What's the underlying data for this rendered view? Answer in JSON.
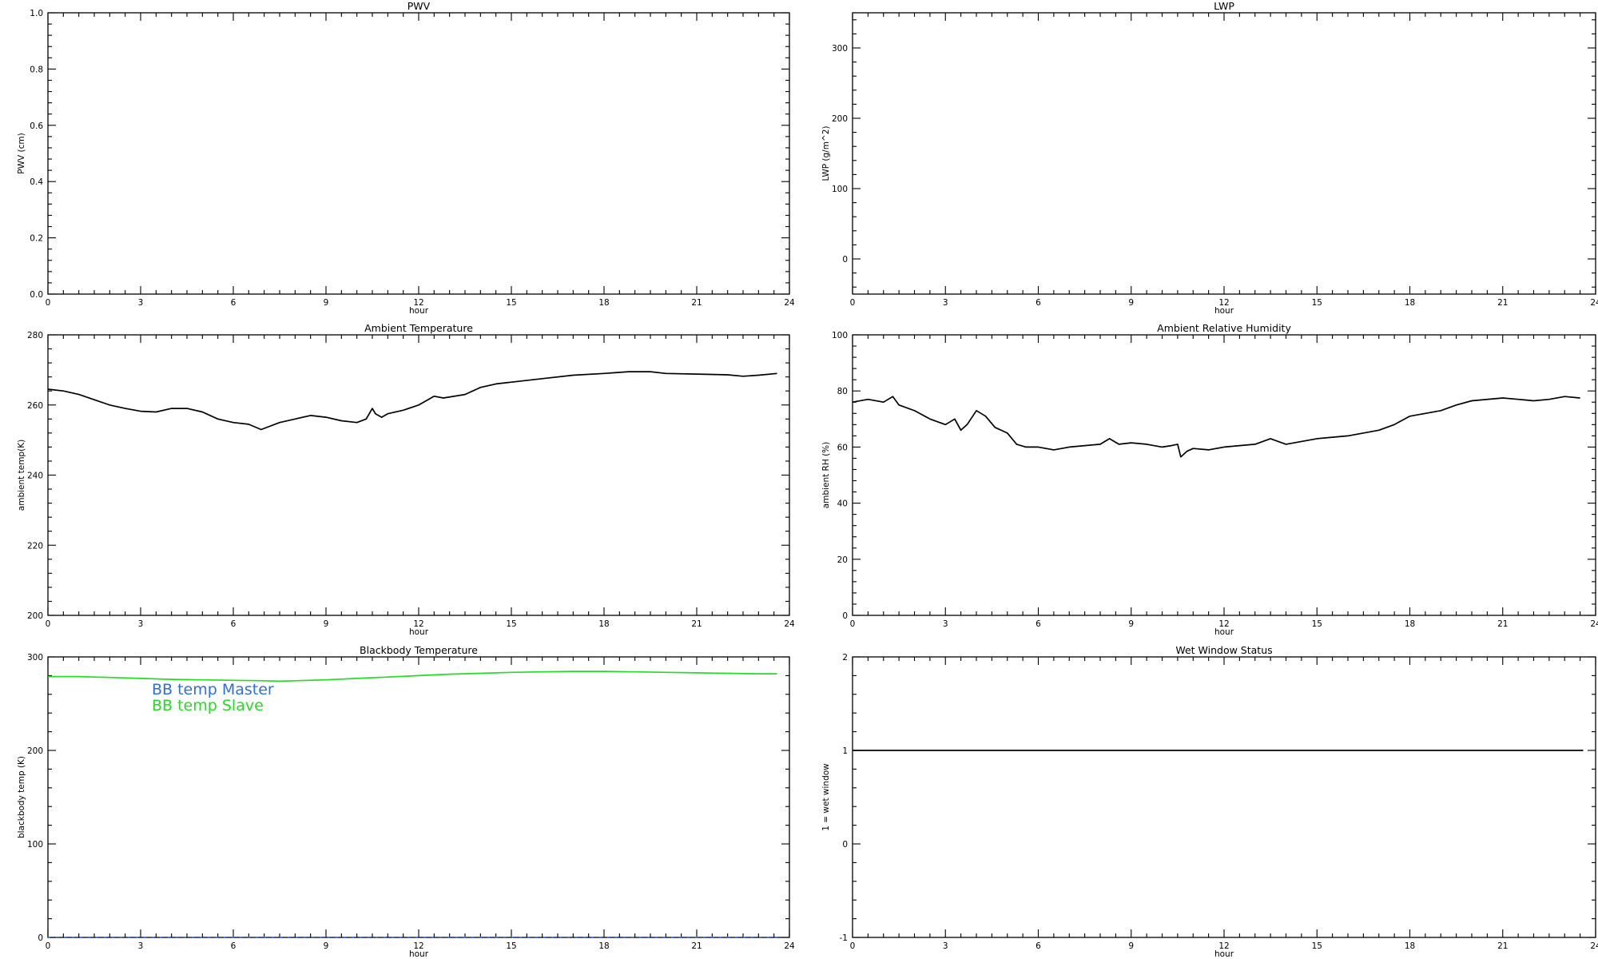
{
  "chart_data": [
    {
      "id": "pwv",
      "type": "line",
      "title": "PWV",
      "xlabel": "hour",
      "ylabel": "PWV (cm)",
      "xlim": [
        0,
        24
      ],
      "ylim": [
        0,
        1
      ],
      "xticks": [
        0,
        3,
        6,
        9,
        12,
        15,
        18,
        21,
        24
      ],
      "xtick_labels": [
        "0",
        "3",
        "6",
        "9",
        "12",
        "15",
        "18",
        "21",
        "24"
      ],
      "yticks": [
        0,
        0.2,
        0.4,
        0.6,
        0.8,
        1.0
      ],
      "ytick_labels": [
        "0.0",
        "0.2",
        "0.4",
        "0.6",
        "0.8",
        "1.0"
      ],
      "series": []
    },
    {
      "id": "lwp",
      "type": "line",
      "title": "LWP",
      "xlabel": "hour",
      "ylabel": "LWP (g/m^2)",
      "xlim": [
        0,
        24
      ],
      "ylim": [
        -50,
        350
      ],
      "xticks": [
        0,
        3,
        6,
        9,
        12,
        15,
        18,
        21,
        24
      ],
      "xtick_labels": [
        "0",
        "3",
        "6",
        "9",
        "12",
        "15",
        "18",
        "21",
        "24"
      ],
      "yticks": [
        0,
        100,
        200,
        300
      ],
      "ytick_labels": [
        "0",
        "100",
        "200",
        "300"
      ],
      "series": []
    },
    {
      "id": "ambient-temperature",
      "type": "line",
      "title": "Ambient Temperature",
      "xlabel": "hour",
      "ylabel": "ambient temp(K)",
      "xlim": [
        0,
        24
      ],
      "ylim": [
        200,
        280
      ],
      "xticks": [
        0,
        3,
        6,
        9,
        12,
        15,
        18,
        21,
        24
      ],
      "xtick_labels": [
        "0",
        "3",
        "6",
        "9",
        "12",
        "15",
        "18",
        "21",
        "24"
      ],
      "yticks": [
        200,
        220,
        240,
        260,
        280
      ],
      "ytick_labels": [
        "200",
        "220",
        "240",
        "260",
        "280"
      ],
      "series": [
        {
          "color": "#000000",
          "x": [
            0,
            0.5,
            1,
            1.5,
            2,
            2.5,
            3,
            3.5,
            4,
            4.5,
            5,
            5.5,
            6,
            6.5,
            6.9,
            7.5,
            8,
            8.5,
            9,
            9.5,
            10,
            10.3,
            10.5,
            10.6,
            10.8,
            11,
            11.5,
            12,
            12.3,
            12.5,
            12.8,
            13.5,
            14,
            14.5,
            15,
            16,
            17,
            18,
            18.8,
            19.5,
            20,
            21,
            22,
            22.5,
            23,
            23.6
          ],
          "y": [
            264.5,
            264,
            263,
            261.5,
            260,
            259,
            258.2,
            258,
            259,
            259,
            258,
            256,
            255,
            254.5,
            253,
            255,
            256,
            257,
            256.5,
            255.5,
            255,
            256,
            259,
            257.5,
            256.5,
            257.5,
            258.5,
            260,
            261.5,
            262.5,
            262,
            263,
            265,
            266,
            266.5,
            267.5,
            268.5,
            269,
            269.5,
            269.5,
            269,
            268.8,
            268.6,
            268.2,
            268.5,
            269
          ]
        }
      ]
    },
    {
      "id": "ambient-relative-humidity",
      "type": "line",
      "title": "Ambient Relative Humidity",
      "xlabel": "hour",
      "ylabel": "ambient RH (%)",
      "xlim": [
        0,
        24
      ],
      "ylim": [
        0,
        100
      ],
      "xticks": [
        0,
        3,
        6,
        9,
        12,
        15,
        18,
        21,
        24
      ],
      "xtick_labels": [
        "0",
        "3",
        "6",
        "9",
        "12",
        "15",
        "18",
        "21",
        "24"
      ],
      "yticks": [
        0,
        20,
        40,
        60,
        80,
        100
      ],
      "ytick_labels": [
        "0",
        "20",
        "40",
        "60",
        "80",
        "100"
      ],
      "series": [
        {
          "color": "#000000",
          "x": [
            0,
            0.5,
            1,
            1.3,
            1.5,
            2,
            2.5,
            3,
            3.3,
            3.5,
            3.7,
            4,
            4.3,
            4.6,
            5,
            5.3,
            5.6,
            6,
            6.5,
            7,
            8,
            8.3,
            8.6,
            9,
            9.5,
            10,
            10.3,
            10.5,
            10.6,
            10.8,
            11,
            11.5,
            12,
            12.5,
            13,
            13.5,
            14,
            14.5,
            15,
            16,
            17,
            17.5,
            18,
            18.5,
            19,
            19.5,
            20,
            21,
            21.5,
            22,
            22.5,
            23,
            23.5
          ],
          "y": [
            76,
            77,
            76,
            78,
            75,
            73,
            70,
            68,
            70,
            66,
            68,
            73,
            71,
            67,
            65,
            61,
            60,
            60,
            59,
            60,
            61,
            63,
            61,
            61.5,
            61,
            60,
            60.5,
            61,
            56.5,
            58.5,
            59.5,
            59,
            60,
            60.5,
            61,
            63,
            61,
            62,
            63,
            64,
            66,
            68,
            71,
            72,
            73,
            75,
            76.5,
            77.5,
            77,
            76.5,
            77,
            78,
            77.5
          ]
        }
      ]
    },
    {
      "id": "blackbody-temperature",
      "type": "line",
      "title": "Blackbody Temperature",
      "xlabel": "hour",
      "ylabel": "blackbody temp (K)",
      "xlim": [
        0,
        24
      ],
      "ylim": [
        0,
        300
      ],
      "xticks": [
        0,
        3,
        6,
        9,
        12,
        15,
        18,
        21,
        24
      ],
      "xtick_labels": [
        "0",
        "3",
        "6",
        "9",
        "12",
        "15",
        "18",
        "21",
        "24"
      ],
      "yticks": [
        0,
        100,
        200,
        300
      ],
      "ytick_labels": [
        "0",
        "100",
        "200",
        "300"
      ],
      "legend": "top-left",
      "series": [
        {
          "name": "BB temp Master",
          "color": "#2f6fe0",
          "dashed": true,
          "x": [
            0,
            3,
            6,
            9,
            12,
            15,
            18,
            21,
            23.6
          ],
          "y": [
            0,
            0,
            0,
            0,
            0,
            0,
            0,
            0,
            0
          ]
        },
        {
          "name": "BB temp Slave",
          "color": "#22dd22",
          "dashed": false,
          "x": [
            0,
            1,
            2,
            3,
            4,
            5,
            6,
            7,
            7.5,
            8,
            9,
            10,
            11,
            12,
            13,
            14,
            15,
            16,
            17,
            18,
            19,
            20,
            21,
            22,
            23,
            23.6
          ],
          "y": [
            279,
            279,
            278,
            277,
            276,
            275.5,
            275,
            274.5,
            274,
            274.5,
            275.5,
            277,
            278.5,
            280,
            281.5,
            282.5,
            283.5,
            284,
            284.5,
            284.5,
            284,
            283.5,
            283,
            282.5,
            282,
            282
          ]
        }
      ]
    },
    {
      "id": "wet-window-status",
      "type": "line",
      "title": "Wet Window Status",
      "xlabel": "hour",
      "ylabel": "1 = wet window",
      "xlim": [
        0,
        24
      ],
      "ylim": [
        -1,
        2
      ],
      "xticks": [
        0,
        3,
        6,
        9,
        12,
        15,
        18,
        21,
        24
      ],
      "xtick_labels": [
        "0",
        "3",
        "6",
        "9",
        "12",
        "15",
        "18",
        "21",
        "24"
      ],
      "yticks": [
        -1,
        0,
        1,
        2
      ],
      "ytick_labels": [
        "-1",
        "0",
        "1",
        "2"
      ],
      "series": [
        {
          "color": "#000000",
          "x": [
            0,
            23.6
          ],
          "y": [
            1,
            1
          ]
        }
      ]
    }
  ]
}
